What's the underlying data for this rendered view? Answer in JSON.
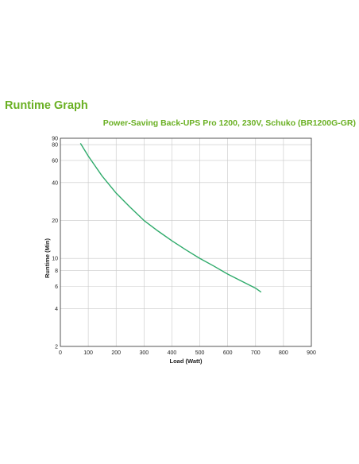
{
  "heading": "Runtime Graph",
  "chart_data": {
    "type": "line",
    "title": "Power-Saving Back-UPS Pro 1200, 230V, Schuko (BR1200G-GR)",
    "xlabel": "Load (Watt)",
    "ylabel": "Runtime (Min)",
    "xlim": [
      0,
      900
    ],
    "ylim": [
      2,
      90
    ],
    "yscale": "log",
    "grid": true,
    "legend": "none",
    "x_ticks": [
      0,
      100,
      200,
      300,
      400,
      500,
      600,
      700,
      800,
      900
    ],
    "y_ticks": [
      2,
      4,
      6,
      8,
      10,
      20,
      40,
      60,
      80,
      90
    ],
    "line_color": "#2eaa6a",
    "series": [
      {
        "x": [
          72,
          100,
          150,
          200,
          250,
          300,
          350,
          400,
          450,
          500,
          550,
          600,
          650,
          700,
          720
        ],
        "values": [
          82,
          65,
          45,
          33,
          25.5,
          20,
          16.5,
          13.8,
          11.7,
          10,
          8.7,
          7.5,
          6.6,
          5.8,
          5.4
        ]
      }
    ]
  }
}
